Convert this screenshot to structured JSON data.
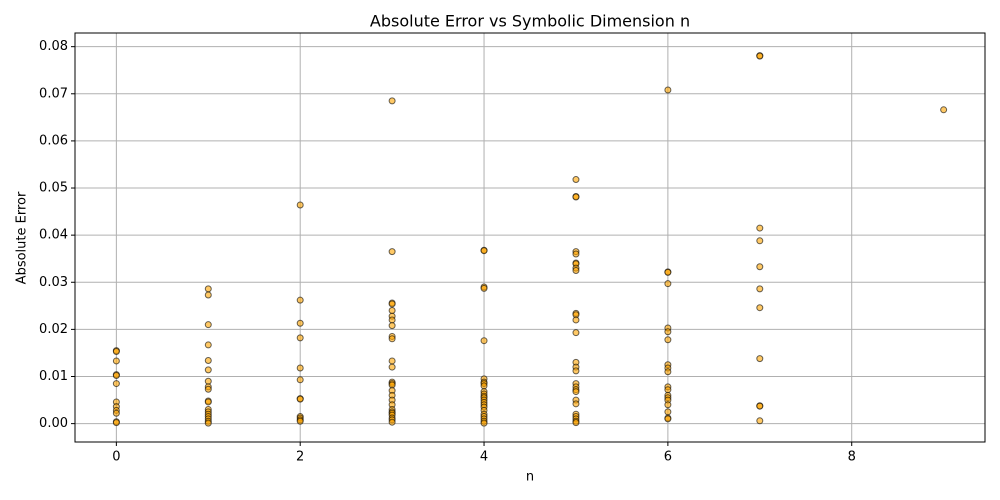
{
  "chart_data": {
    "type": "scatter",
    "title": "Absolute Error vs Symbolic Dimension n",
    "xlabel": "n",
    "ylabel": "Absolute Error",
    "color": "#ffa500",
    "edgecolor": "#000000",
    "grid": true,
    "xlim": [
      -0.45,
      9.45
    ],
    "ylim": [
      -0.0039,
      0.0829
    ],
    "xticks": [
      0,
      2,
      4,
      6,
      8
    ],
    "yticks": [
      {
        "value": 0,
        "label": "0.00"
      },
      0.01,
      0.02,
      0.03,
      0.04,
      0.05,
      0.06,
      0.07,
      0.08
    ],
    "x": [
      0,
      0,
      0,
      0,
      0,
      0,
      0,
      0,
      0,
      0,
      0,
      0,
      1,
      1,
      1,
      1,
      1,
      1,
      1,
      1,
      1,
      1,
      1,
      1,
      1,
      1,
      1,
      1,
      1,
      1,
      2,
      2,
      2,
      2,
      2,
      2,
      2,
      2,
      2,
      2,
      2,
      2,
      3,
      3,
      3,
      3,
      3,
      3,
      3,
      3,
      3,
      3,
      3,
      3,
      3,
      3,
      3,
      3,
      3,
      3,
      3,
      3,
      3,
      3,
      3,
      3,
      3,
      3,
      4,
      4,
      4,
      4,
      4,
      4,
      4,
      4,
      4,
      4,
      4,
      4,
      4,
      4,
      4,
      4,
      4,
      4,
      4,
      4,
      4,
      4,
      4,
      5,
      5,
      5,
      5,
      5,
      5,
      5,
      5,
      5,
      5,
      5,
      5,
      5,
      5,
      5,
      5,
      5,
      5,
      5,
      5,
      5,
      5,
      5,
      5,
      5,
      5,
      5,
      6,
      6,
      6,
      6,
      6,
      6,
      6,
      6,
      6,
      6,
      6,
      6,
      6,
      6,
      6,
      6,
      6,
      6,
      6,
      7,
      7,
      7,
      7,
      7,
      7,
      7,
      7,
      7,
      7,
      7,
      9
    ],
    "y": [
      0.0155,
      0.0153,
      0.0133,
      0.0104,
      0.0102,
      0.0085,
      0.0046,
      0.0036,
      0.0028,
      0.0022,
      0.0004,
      0.0002,
      0.0286,
      0.0273,
      0.021,
      0.0167,
      0.0134,
      0.0114,
      0.009,
      0.0078,
      0.0073,
      0.0048,
      0.0046,
      0.003,
      0.0025,
      0.002,
      0.0015,
      0.001,
      0.0005,
      0.0001,
      0.0464,
      0.0262,
      0.0213,
      0.0182,
      0.0118,
      0.0093,
      0.0053,
      0.0052,
      0.0015,
      0.0012,
      0.0008,
      0.0005,
      0.0685,
      0.0365,
      0.0256,
      0.0254,
      0.024,
      0.0228,
      0.022,
      0.0208,
      0.0185,
      0.018,
      0.0133,
      0.012,
      0.0088,
      0.0085,
      0.0082,
      0.007,
      0.006,
      0.005,
      0.004,
      0.003,
      0.0025,
      0.0022,
      0.0018,
      0.0012,
      0.0008,
      0.0003,
      0.0368,
      0.0367,
      0.029,
      0.0287,
      0.0176,
      0.0095,
      0.0088,
      0.0085,
      0.008,
      0.0068,
      0.0063,
      0.0058,
      0.0055,
      0.005,
      0.0045,
      0.004,
      0.0035,
      0.0028,
      0.002,
      0.0015,
      0.001,
      0.0005,
      0.0001,
      0.0518,
      0.0482,
      0.0481,
      0.0365,
      0.036,
      0.0341,
      0.0339,
      0.033,
      0.0325,
      0.0234,
      0.0231,
      0.022,
      0.0193,
      0.013,
      0.012,
      0.0112,
      0.0085,
      0.0078,
      0.0072,
      0.0068,
      0.005,
      0.0042,
      0.002,
      0.0015,
      0.001,
      0.0005,
      0.0002,
      0.0708,
      0.0322,
      0.0321,
      0.0297,
      0.0203,
      0.0195,
      0.0178,
      0.0125,
      0.0118,
      0.011,
      0.0078,
      0.0072,
      0.006,
      0.0055,
      0.005,
      0.004,
      0.0025,
      0.0012,
      0.001,
      0.0781,
      0.078,
      0.0415,
      0.0388,
      0.0333,
      0.0286,
      0.0246,
      0.0138,
      0.0038,
      0.0037,
      0.0006,
      0.0666
    ]
  }
}
